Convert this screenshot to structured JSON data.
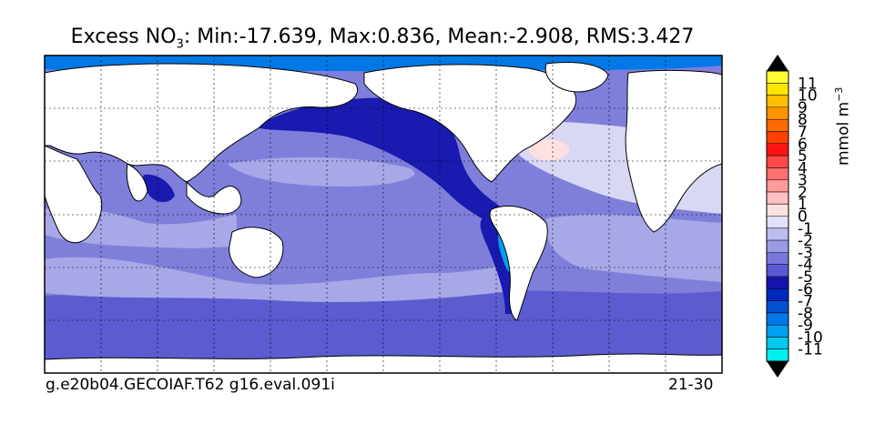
{
  "title": {
    "prefix": "Excess NO",
    "subscript": "3",
    "suffix": ": Min:-17.639, Max:0.836, Mean:-2.908, RMS:3.427"
  },
  "footer": {
    "left": "g.e20b04.GECOIAF.T62 g16.eval.091i",
    "right": "21-30"
  },
  "colorbar": {
    "unit_base": "mmol m",
    "unit_exp": "−3",
    "ticks": [
      "-11",
      "-10",
      "-9",
      "-8",
      "-7",
      "-6",
      "-5",
      "-4",
      "-3",
      "-2",
      "-1",
      "0",
      "1",
      "2",
      "3",
      "4",
      "5",
      "6",
      "7",
      "8",
      "9",
      "10",
      "11"
    ],
    "colors": [
      "#00eeee",
      "#00c8ee",
      "#00a0ee",
      "#0078e6",
      "#0050d2",
      "#0028be",
      "#1414aa",
      "#5a5ad2",
      "#7878dc",
      "#9a9ae6",
      "#bcbcf0",
      "#e0e0f8",
      "#ffe0e0",
      "#ffc0c0",
      "#ff9a9a",
      "#ff7070",
      "#ff4848",
      "#ff1414",
      "#ff4000",
      "#ff6a00",
      "#ff9400",
      "#ffbe00",
      "#ffe600",
      "#ffff32"
    ]
  },
  "map_colors": {
    "land": "#ffffff",
    "deep": "#5c5cd0",
    "mid": "#7f7fdb",
    "light": "#a8a8e8",
    "pale": "#d8d8f4",
    "pink": "#ffe0e0",
    "dark": "#1a1ab0",
    "cyan": "#00e0f0"
  }
}
